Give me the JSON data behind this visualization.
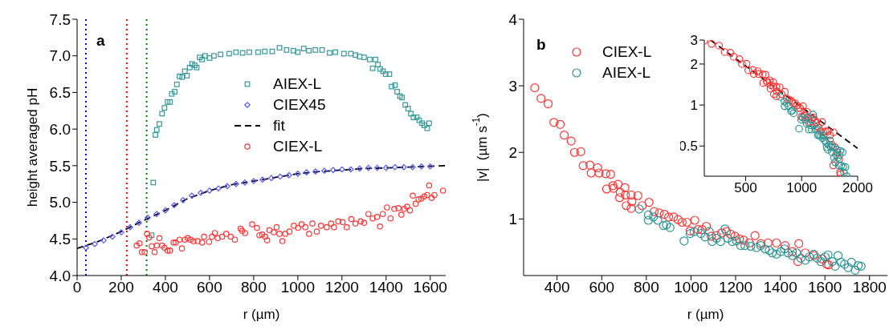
{
  "chart_data": [
    {
      "type": "scatter",
      "xlabel": "r (µm)",
      "ylabel": "height averaged pH",
      "annotations": [
        "a"
      ],
      "xlim": [
        0,
        1670
      ],
      "xticks": [
        0,
        200,
        400,
        600,
        800,
        1000,
        1200,
        1400,
        1600
      ],
      "ylim": [
        4,
        7.5
      ],
      "yticks": [
        {
          "value": 4,
          "label": "4.0"
        },
        {
          "value": 4.5,
          "label": "4.5"
        },
        {
          "value": 5,
          "label": "5.0"
        },
        {
          "value": 5.5,
          "label": "5.5"
        },
        {
          "value": 6,
          "label": "6.0"
        },
        {
          "value": 6.5,
          "label": "6.5"
        },
        {
          "value": 7,
          "label": "7.0"
        },
        {
          "value": 7.5,
          "label": "7.5"
        }
      ],
      "legend": "top",
      "ref_lines": [
        {
          "axis": "x",
          "value": 40,
          "color": "#0000ff",
          "line_style": "dotted"
        },
        {
          "axis": "x",
          "value": 225,
          "color": "#ff0000",
          "line_style": "dotted"
        },
        {
          "axis": "x",
          "value": 315,
          "color": "#008000",
          "line_style": "dotted"
        }
      ],
      "series": [
        {
          "name": "AIEX-L",
          "color": "#339999",
          "marker": "square",
          "x": [
            338,
            345,
            355,
            361,
            373,
            385,
            396,
            410,
            421,
            429,
            442,
            452,
            464,
            476,
            488,
            498,
            510,
            521,
            533,
            542,
            555,
            566,
            580,
            600,
            620,
            650,
            689,
            720,
            750,
            780,
            820,
            850,
            884,
            917,
            949,
            980,
            1000,
            1027,
            1050,
            1079,
            1110,
            1144,
            1170,
            1209,
            1240,
            1261,
            1280,
            1300,
            1326,
            1339,
            1352,
            1363,
            1373,
            1386,
            1398,
            1415,
            1425,
            1440,
            1450,
            1463,
            1472,
            1487,
            1500,
            1512,
            1524,
            1539,
            1550,
            1563,
            1573,
            1586,
            1595
          ],
          "values": [
            4.55,
            5.27,
            5.92,
            5.99,
            6.07,
            6.21,
            6.29,
            6.37,
            6.37,
            6.48,
            6.51,
            6.61,
            6.72,
            6.71,
            6.79,
            6.73,
            6.84,
            6.89,
            6.87,
            6.84,
            6.98,
            6.95,
            7.0,
            6.97,
            7.0,
            7.02,
            7.03,
            7.05,
            7.04,
            7.05,
            7.05,
            7.06,
            7.06,
            7.11,
            7.08,
            7.07,
            7.05,
            7.1,
            7.07,
            7.08,
            7.08,
            7.04,
            7.05,
            7.03,
            7.03,
            7.01,
            6.99,
            6.98,
            6.95,
            6.83,
            6.95,
            6.88,
            6.82,
            6.79,
            6.75,
            6.75,
            6.58,
            6.6,
            6.51,
            6.45,
            6.43,
            6.33,
            6.28,
            6.21,
            6.16,
            6.16,
            6.12,
            6.08,
            6.05,
            6.01,
            6.08
          ]
        },
        {
          "name": "CIEX45",
          "color": "#5555ff",
          "marker": "diamond",
          "x": [
            40,
            80,
            120,
            160,
            200,
            240,
            280,
            320,
            360,
            400,
            440,
            480,
            520,
            560,
            600,
            640,
            680,
            720,
            760,
            800,
            840,
            880,
            920,
            960,
            1000,
            1040,
            1080,
            1120,
            1160,
            1200,
            1240,
            1280,
            1320,
            1360,
            1400,
            1440,
            1480,
            1520,
            1560,
            1600
          ],
          "values": [
            4.38,
            4.43,
            4.48,
            4.53,
            4.59,
            4.66,
            4.72,
            4.79,
            4.84,
            4.89,
            4.96,
            5.03,
            5.09,
            5.13,
            5.16,
            5.19,
            5.22,
            5.25,
            5.27,
            5.29,
            5.31,
            5.33,
            5.35,
            5.37,
            5.39,
            5.41,
            5.42,
            5.43,
            5.44,
            5.45,
            5.45,
            5.46,
            5.47,
            5.47,
            5.47,
            5.48,
            5.48,
            5.48,
            5.49,
            5.49
          ]
        },
        {
          "name": "fit",
          "type": "line",
          "color": "#000000",
          "line_style": "dashed",
          "x": [
            0,
            100,
            200,
            300,
            400,
            500,
            600,
            700,
            800,
            900,
            1000,
            1100,
            1200,
            1300,
            1400,
            1500,
            1670
          ],
          "values": [
            4.37,
            4.47,
            4.6,
            4.75,
            4.89,
            5.05,
            5.16,
            5.24,
            5.29,
            5.34,
            5.39,
            5.42,
            5.44,
            5.46,
            5.47,
            5.48,
            5.5
          ]
        },
        {
          "name": "CIEX-L",
          "color": "#ff3333",
          "marker": "circle",
          "x": [
            270,
            283,
            293,
            306,
            317,
            326,
            338,
            351,
            361,
            373,
            385,
            396,
            410,
            421,
            437,
            447,
            464,
            475,
            488,
            501,
            514,
            527,
            546,
            566,
            575,
            598,
            611,
            624,
            637,
            657,
            676,
            696,
            715,
            741,
            748,
            761,
            793,
            815,
            826,
            839,
            852,
            861,
            871,
            891,
            904,
            917,
            930,
            943,
            962,
            982,
            1001,
            1017,
            1034,
            1051,
            1066,
            1086,
            1105,
            1131,
            1151,
            1164,
            1183,
            1203,
            1222,
            1242,
            1261,
            1285,
            1300,
            1320,
            1339,
            1359,
            1372,
            1385,
            1404,
            1420,
            1437,
            1456,
            1469,
            1482,
            1495,
            1508,
            1521,
            1534,
            1547,
            1560,
            1573,
            1586,
            1595,
            1606,
            1619,
            1658
          ],
          "values": [
            4.41,
            4.44,
            4.32,
            4.32,
            4.57,
            4.52,
            4.4,
            4.32,
            4.41,
            4.51,
            4.41,
            4.38,
            4.34,
            4.34,
            4.45,
            4.45,
            4.49,
            4.37,
            4.49,
            4.51,
            4.49,
            4.47,
            4.47,
            4.45,
            4.53,
            4.46,
            4.53,
            4.58,
            4.51,
            4.53,
            4.57,
            4.53,
            4.49,
            4.64,
            4.61,
            4.58,
            4.7,
            4.65,
            4.55,
            4.56,
            4.53,
            4.48,
            4.62,
            4.59,
            4.66,
            4.57,
            4.47,
            4.57,
            4.6,
            4.68,
            4.65,
            4.7,
            4.66,
            4.57,
            4.71,
            4.6,
            4.68,
            4.66,
            4.71,
            4.66,
            4.74,
            4.73,
            4.66,
            4.77,
            4.71,
            4.74,
            4.72,
            4.84,
            4.78,
            4.8,
            4.67,
            4.84,
            4.93,
            4.78,
            4.91,
            4.92,
            4.83,
            4.91,
            4.94,
            4.89,
            5.09,
            4.98,
            5.04,
            5.05,
            5.08,
            5.1,
            5.23,
            5.06,
            5.1,
            5.16
          ]
        }
      ]
    },
    {
      "type": "scatter",
      "xlabel": "r (µm)",
      "ylabel": "|v|  (µm s$^{-1}$)",
      "annotations": [
        "b"
      ],
      "xlim": [
        250,
        1880
      ],
      "xticks": [
        400,
        600,
        800,
        1000,
        1200,
        1400,
        1600,
        1800
      ],
      "ylim": [
        0.15,
        4
      ],
      "yticks": [
        1,
        2,
        3,
        4
      ],
      "legend": "top left",
      "series": [
        {
          "name": "CIEX-L",
          "color": "#ff3333",
          "marker": "circle",
          "x": [
            300,
            328,
            360,
            386,
            414,
            432,
            463,
            478,
            506,
            517,
            547,
            553,
            582,
            588,
            618,
            622,
            640,
            650,
            653,
            673,
            680,
            683,
            704,
            706,
            710,
            732,
            732,
            735,
            762,
            781,
            812,
            835,
            858,
            881,
            900,
            922,
            942,
            960,
            982,
            996,
            1017,
            1031,
            1050,
            1069,
            1091,
            1114,
            1137,
            1159,
            1178,
            1197,
            1217,
            1236,
            1262,
            1287,
            1313,
            1345,
            1383,
            1422,
            1454,
            1479,
            1483,
            1512,
            1550,
            1588,
            1608,
            1617
          ],
          "values": [
            2.97,
            2.81,
            2.73,
            2.45,
            2.42,
            2.26,
            2.17,
            2.0,
            2.01,
            1.8,
            1.81,
            1.69,
            1.77,
            1.69,
            1.68,
            1.45,
            1.67,
            1.5,
            1.46,
            1.52,
            1.32,
            1.4,
            1.47,
            1.36,
            1.2,
            1.36,
            1.16,
            1.26,
            1.35,
            1.2,
            1.25,
            1.11,
            1.09,
            1.07,
            1.03,
            1.03,
            0.99,
            0.95,
            0.95,
            0.82,
            0.98,
            0.84,
            0.84,
            0.89,
            0.74,
            0.75,
            0.79,
            0.81,
            0.77,
            0.74,
            0.7,
            0.68,
            0.64,
            0.75,
            0.63,
            0.64,
            0.64,
            0.6,
            0.51,
            0.36,
            0.63,
            0.49,
            0.45,
            0.4,
            0.32,
            0.31
          ]
        },
        {
          "name": "AIEX-L",
          "color": "#2a9494",
          "marker": "circle",
          "x": [
            768,
            809,
            809,
            832,
            851,
            877,
            890,
            906,
            969,
            996,
            1014,
            1044,
            1063,
            1082,
            1095,
            1114,
            1133,
            1153,
            1165,
            1185,
            1204,
            1223,
            1242,
            1268,
            1294,
            1312,
            1332,
            1351,
            1364,
            1383,
            1403,
            1419,
            1435,
            1454,
            1473,
            1492,
            1512,
            1531,
            1550,
            1565,
            1582,
            1601,
            1614,
            1633,
            1646,
            1659,
            1672,
            1688,
            1704,
            1719,
            1736,
            1749,
            1762
          ],
          "values": [
            1.15,
            1.06,
            0.98,
            1.03,
            0.98,
            0.9,
            0.91,
            0.87,
            0.67,
            0.78,
            0.81,
            0.78,
            0.73,
            0.81,
            0.66,
            0.71,
            0.66,
            0.85,
            0.71,
            0.66,
            0.67,
            0.6,
            0.6,
            0.59,
            0.57,
            0.6,
            0.55,
            0.53,
            0.49,
            0.47,
            0.51,
            0.55,
            0.49,
            0.45,
            0.49,
            0.41,
            0.38,
            0.43,
            0.47,
            0.41,
            0.36,
            0.43,
            0.46,
            0.36,
            0.29,
            0.45,
            0.35,
            0.32,
            0.27,
            0.35,
            0.23,
            0.3,
            0.29
          ]
        }
      ]
    },
    {
      "type": "scatter",
      "log": "xy",
      "xlim": [
        300,
        2000
      ],
      "xticks": [
        500,
        1000,
        2000
      ],
      "ylim": [
        0.3,
        3
      ],
      "yticks": [
        0.5,
        1,
        2,
        3
      ],
      "series": [
        {
          "color": "#ff3333",
          "marker": "circle",
          "x": [
            300,
            328,
            360,
            386,
            414,
            432,
            463,
            478,
            506,
            517,
            547,
            553,
            582,
            588,
            618,
            622,
            640,
            650,
            653,
            673,
            680,
            683,
            704,
            706,
            710,
            732,
            732,
            735,
            762,
            781,
            812,
            835,
            858,
            881,
            900,
            922,
            942,
            960,
            982,
            996,
            1017,
            1031,
            1050,
            1069,
            1091,
            1114,
            1137,
            1159,
            1178,
            1197,
            1217,
            1236,
            1262,
            1287,
            1313,
            1345,
            1383,
            1422,
            1454,
            1479,
            1483,
            1512,
            1550,
            1588,
            1608,
            1617
          ],
          "values": [
            2.97,
            2.81,
            2.73,
            2.45,
            2.42,
            2.26,
            2.17,
            2.0,
            2.01,
            1.8,
            1.81,
            1.69,
            1.77,
            1.69,
            1.68,
            1.45,
            1.67,
            1.5,
            1.46,
            1.52,
            1.32,
            1.4,
            1.47,
            1.36,
            1.2,
            1.36,
            1.16,
            1.26,
            1.35,
            1.2,
            1.25,
            1.11,
            1.09,
            1.07,
            1.03,
            1.03,
            0.99,
            0.95,
            0.95,
            0.82,
            0.98,
            0.84,
            0.84,
            0.89,
            0.74,
            0.75,
            0.79,
            0.81,
            0.77,
            0.74,
            0.7,
            0.68,
            0.64,
            0.75,
            0.63,
            0.64,
            0.64,
            0.6,
            0.51,
            0.36,
            0.63,
            0.49,
            0.45,
            0.4,
            0.32,
            0.31
          ]
        },
        {
          "color": "#2a9494",
          "marker": "circle",
          "x": [
            768,
            809,
            809,
            832,
            851,
            877,
            890,
            906,
            969,
            996,
            1014,
            1044,
            1063,
            1082,
            1095,
            1114,
            1133,
            1153,
            1165,
            1185,
            1204,
            1223,
            1242,
            1268,
            1294,
            1312,
            1332,
            1351,
            1364,
            1383,
            1403,
            1419,
            1435,
            1454,
            1473,
            1492,
            1512,
            1531,
            1550,
            1565,
            1582,
            1601,
            1614,
            1633,
            1659,
            1672,
            1688,
            1719,
            1749
          ],
          "values": [
            1.15,
            1.06,
            0.98,
            1.03,
            0.98,
            0.9,
            0.91,
            0.87,
            0.67,
            0.78,
            0.81,
            0.78,
            0.73,
            0.81,
            0.66,
            0.71,
            0.66,
            0.85,
            0.71,
            0.66,
            0.67,
            0.6,
            0.6,
            0.59,
            0.57,
            0.6,
            0.55,
            0.53,
            0.49,
            0.47,
            0.51,
            0.55,
            0.49,
            0.45,
            0.49,
            0.41,
            0.38,
            0.43,
            0.47,
            0.41,
            0.36,
            0.43,
            0.46,
            0.36,
            0.45,
            0.35,
            0.32,
            0.35,
            0.3
          ]
        },
        {
          "type": "line",
          "color": "#000000",
          "line_style": "dashed",
          "x": [
            324,
            2000
          ],
          "values": [
            3,
            0.48
          ]
        }
      ]
    }
  ]
}
